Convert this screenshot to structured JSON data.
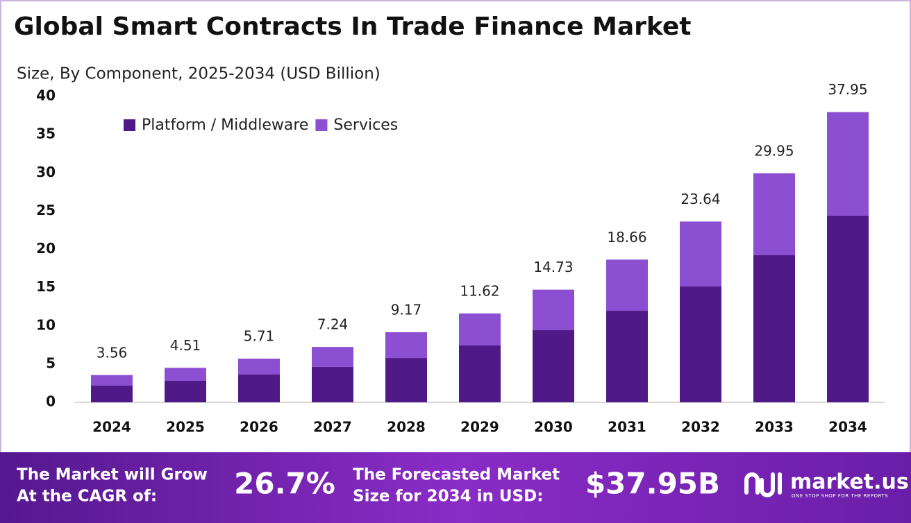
{
  "chart_data": {
    "type": "stacked_bar",
    "title": "Global Smart Contracts In Trade Finance Market",
    "subtitle": "Size, By Component, 2025-2034 (USD Billion)",
    "categories": [
      "2024",
      "2025",
      "2026",
      "2027",
      "2028",
      "2029",
      "2030",
      "2031",
      "2032",
      "2033",
      "2034"
    ],
    "series": [
      {
        "name": "Platform / Middleware",
        "color": "#4f1a87",
        "values": [
          2.18,
          2.81,
          3.63,
          4.63,
          5.8,
          7.44,
          9.43,
          11.97,
          15.15,
          19.23,
          24.4
        ]
      },
      {
        "name": "Services",
        "color": "#8c4fd2",
        "values": [
          1.38,
          1.7,
          2.08,
          2.61,
          3.37,
          4.18,
          5.3,
          6.69,
          8.49,
          10.72,
          13.55
        ]
      }
    ],
    "totals": [
      3.56,
      4.51,
      5.71,
      7.24,
      9.17,
      11.62,
      14.73,
      18.66,
      23.64,
      29.95,
      37.95
    ],
    "ylim": [
      0,
      40
    ],
    "yticks": [
      0,
      5,
      10,
      15,
      20,
      25,
      30,
      35,
      40
    ],
    "grid": false
  },
  "footer": {
    "cagr_label": [
      "The Market will Grow",
      "At the CAGR of:"
    ],
    "cagr_value": "26.7%",
    "forecast_label": [
      "The Forecasted Market",
      "Size for 2034 in USD:"
    ],
    "forecast_value": "$37.95B",
    "brand": "market.us",
    "tagline": "ONE STOP SHOP FOR THE REPORTS"
  }
}
